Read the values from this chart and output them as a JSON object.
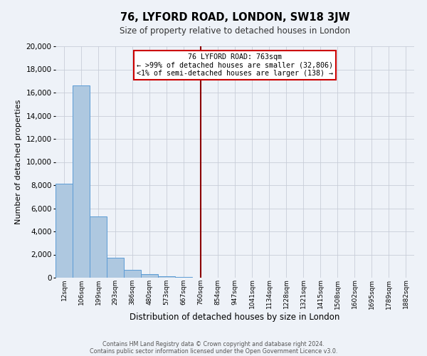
{
  "title": "76, LYFORD ROAD, LONDON, SW18 3JW",
  "subtitle": "Size of property relative to detached houses in London",
  "xlabel": "Distribution of detached houses by size in London",
  "ylabel": "Number of detached properties",
  "bin_labels": [
    "12sqm",
    "106sqm",
    "199sqm",
    "293sqm",
    "386sqm",
    "480sqm",
    "573sqm",
    "667sqm",
    "760sqm",
    "854sqm",
    "947sqm",
    "1041sqm",
    "1134sqm",
    "1228sqm",
    "1321sqm",
    "1415sqm",
    "1508sqm",
    "1602sqm",
    "1695sqm",
    "1789sqm",
    "1882sqm"
  ],
  "bar_values": [
    8100,
    16600,
    5300,
    1750,
    700,
    300,
    150,
    80,
    0,
    0,
    0,
    0,
    0,
    0,
    0,
    0,
    0,
    0,
    0,
    0,
    0
  ],
  "bar_color": "#aec8e0",
  "bar_edge_color": "#5b9bd5",
  "vline_label_idx": 8,
  "vline_color": "#8b0000",
  "annotation_title": "76 LYFORD ROAD: 763sqm",
  "annotation_line1": "← >99% of detached houses are smaller (32,806)",
  "annotation_line2": "<1% of semi-detached houses are larger (138) →",
  "annotation_box_color": "#ffffff",
  "annotation_box_edge": "#cc0000",
  "ylim": [
    0,
    20000
  ],
  "yticks": [
    0,
    2000,
    4000,
    6000,
    8000,
    10000,
    12000,
    14000,
    16000,
    18000,
    20000
  ],
  "grid_color": "#c8cdd8",
  "bg_color": "#eef2f8",
  "footer1": "Contains HM Land Registry data © Crown copyright and database right 2024.",
  "footer2": "Contains public sector information licensed under the Open Government Licence v3.0."
}
